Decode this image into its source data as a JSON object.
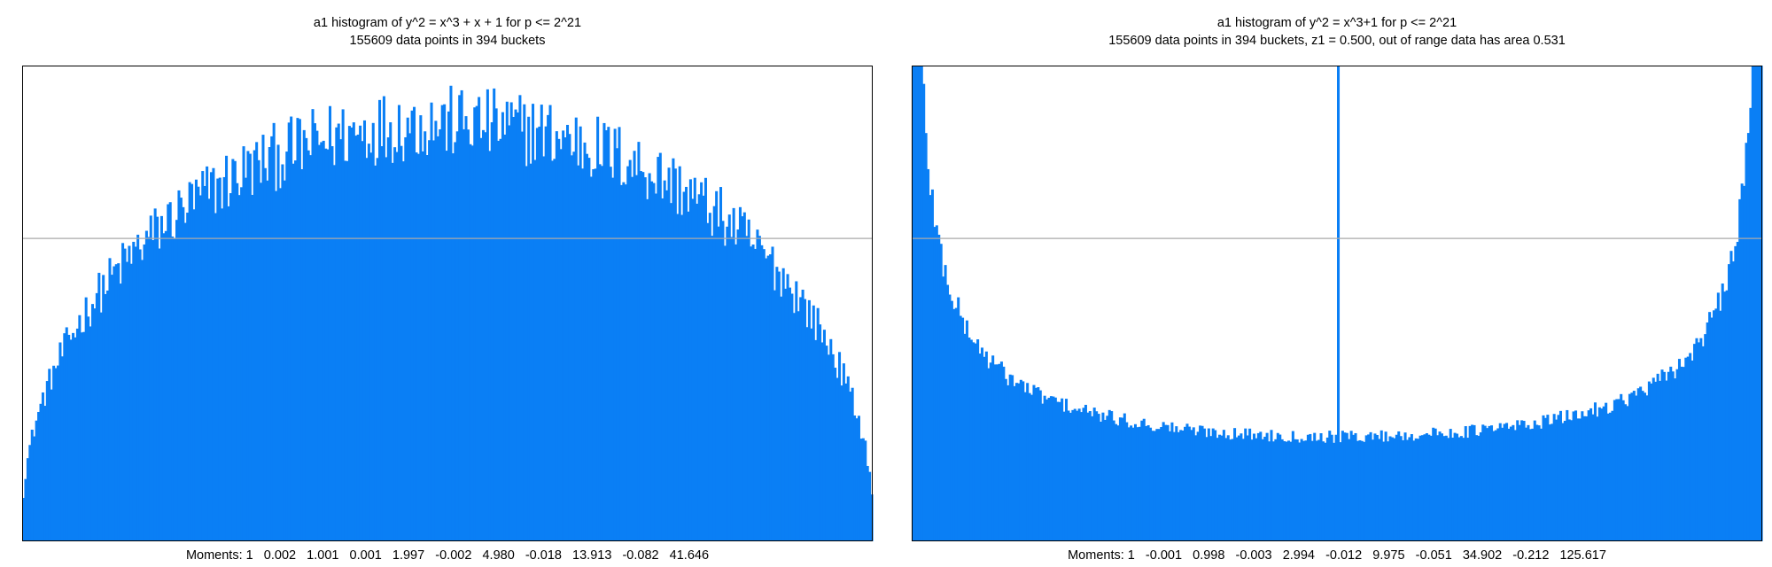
{
  "chart_data": [
    {
      "type": "bar",
      "title": "a1 histogram of y^2 = x^3 + x + 1 for p <= 2^21",
      "subtitle": "155609 data points in 394 buckets",
      "xlim": [
        -1,
        1
      ],
      "buckets": 394,
      "reference_line": 0.6366,
      "moments_text": "Moments: 1   0.002   1.001   0.001   1.997   -0.002   4.980   -0.018   13.913   -0.082   41.646",
      "distribution": "semicircle",
      "bar_color": "#0a7ff5",
      "ylim": [
        0,
        1.0
      ]
    },
    {
      "type": "bar",
      "title": "a1 histogram of y^2 = x^3+1 for p <= 2^21",
      "subtitle": "155609 data points in 394 buckets, z1 = 0.500, out of range data has area 0.531",
      "xlim": [
        -1,
        1
      ],
      "buckets": 394,
      "reference_line": 0.6366,
      "moments_text": "Moments: 1   -0.001   0.998   -0.003   2.994   -0.012   9.975   -0.051   34.902   -0.212   125.617",
      "distribution": "u-shaped",
      "center_spike": true,
      "bar_color": "#0a7ff5",
      "ylim": [
        0,
        1.0
      ]
    }
  ]
}
